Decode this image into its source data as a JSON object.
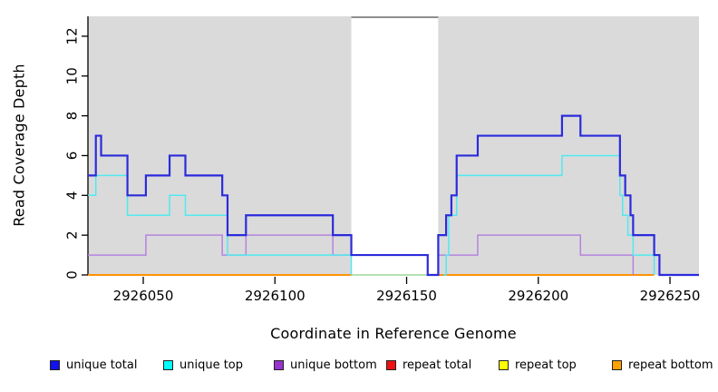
{
  "figure": {
    "xlabel": "Coordinate in Reference Genome",
    "ylabel": "Read Coverage Depth"
  },
  "chart_data": {
    "type": "line",
    "subtype": "step-coverage-plot",
    "title": "",
    "xlabel": "Coordinate in Reference Genome",
    "ylabel": "Read Coverage Depth",
    "xlim": [
      2926029,
      2926261
    ],
    "ylim": [
      0,
      13
    ],
    "x_ticks": [
      2926050,
      2926100,
      2926150,
      2926200,
      2926250
    ],
    "y_ticks": [
      0,
      2,
      4,
      6,
      8,
      10,
      12
    ],
    "grid": false,
    "plot_background": "#dadada",
    "axis_color": "#000000",
    "gap_region": {
      "x_start": 2926129,
      "x_end": 2926162,
      "fill": "#ffffff",
      "top_border": "#8f8f8f"
    },
    "series": [
      {
        "name": "repeat bottom",
        "color": "#ff9204",
        "line_width": 2,
        "segments": [
          [
            [
              2926029,
              0
            ],
            [
              2926129,
              0
            ]
          ],
          [
            [
              2926162,
              0
            ],
            [
              2926244,
              0
            ]
          ]
        ]
      },
      {
        "name": "gap baseline",
        "color": "#9cd89c",
        "line_width": 1.6,
        "segments": [
          [
            [
              2926129,
              0
            ],
            [
              2926162,
              0
            ]
          ]
        ]
      },
      {
        "name": "unique bottom",
        "color": "#b583de",
        "line_width": 1.5,
        "segments": [
          [
            [
              2926029,
              1
            ],
            [
              2926051,
              2
            ],
            [
              2926080,
              1
            ],
            [
              2926089,
              2
            ],
            [
              2926122,
              1
            ],
            [
              2926158,
              0
            ],
            [
              2926162,
              1
            ],
            [
              2926177,
              2
            ],
            [
              2926216,
              1
            ],
            [
              2926236,
              0
            ]
          ]
        ]
      },
      {
        "name": "unique top",
        "color": "#52e9ef",
        "line_width": 1.5,
        "segments": [
          [
            [
              2926029,
              4
            ],
            [
              2926032,
              5
            ],
            [
              2926044,
              3
            ],
            [
              2926060,
              4
            ],
            [
              2926066,
              3
            ],
            [
              2926082,
              1
            ],
            [
              2926129,
              0
            ]
          ],
          [
            [
              2926164,
              0
            ],
            [
              2926165,
              1
            ],
            [
              2926166,
              3
            ],
            [
              2926169,
              5
            ],
            [
              2926209,
              6
            ],
            [
              2926231,
              4
            ],
            [
              2926232,
              3
            ],
            [
              2926234,
              2
            ],
            [
              2926236,
              1
            ],
            [
              2926244,
              0
            ]
          ]
        ]
      },
      {
        "name": "unique total",
        "color": "#2b2bdc",
        "line_width": 2.2,
        "segments": [
          [
            [
              2926029,
              5
            ],
            [
              2926032,
              7
            ],
            [
              2926034,
              6
            ],
            [
              2926044,
              4
            ],
            [
              2926051,
              5
            ],
            [
              2926060,
              6
            ],
            [
              2926066,
              5
            ],
            [
              2926080,
              4
            ],
            [
              2926082,
              2
            ],
            [
              2926089,
              3
            ],
            [
              2926122,
              2
            ],
            [
              2926129,
              1
            ],
            [
              2926158,
              0
            ],
            [
              2926162,
              2
            ],
            [
              2926165,
              3
            ],
            [
              2926167,
              4
            ],
            [
              2926169,
              6
            ],
            [
              2926177,
              7
            ],
            [
              2926209,
              8
            ],
            [
              2926216,
              7
            ],
            [
              2926231,
              5
            ],
            [
              2926233,
              4
            ],
            [
              2926235,
              3
            ],
            [
              2926236,
              2
            ],
            [
              2926244,
              1
            ],
            [
              2926246,
              0
            ],
            [
              2926261,
              0
            ]
          ]
        ]
      }
    ],
    "legend_position": "bottom",
    "legend": [
      {
        "label": "unique total",
        "color": "#1212ee"
      },
      {
        "label": "unique top",
        "color": "#00ffff"
      },
      {
        "label": "unique bottom",
        "color": "#9932cc"
      },
      {
        "label": "repeat total",
        "color": "#ee1111"
      },
      {
        "label": "repeat top",
        "color": "#ffff00"
      },
      {
        "label": "repeat bottom",
        "color": "#ffa200"
      }
    ]
  }
}
